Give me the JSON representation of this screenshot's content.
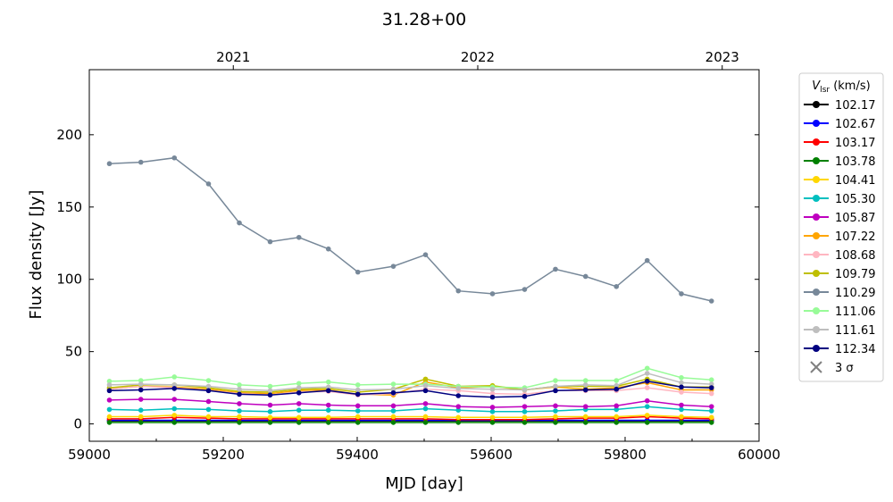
{
  "chart_data": {
    "type": "line",
    "title": "31.28+00",
    "xlabel": "MJD [day]",
    "ylabel": "Flux density [Jy]",
    "xlim": [
      59000,
      60000
    ],
    "ylim": [
      -12,
      245
    ],
    "xticks": [
      "59000",
      "59200",
      "59400",
      "59600",
      "59800",
      "60000"
    ],
    "yticks": [
      "0",
      "50",
      "100",
      "150",
      "200"
    ],
    "top_axis": {
      "ticks": [
        {
          "label": "2021",
          "mjd": 59215
        },
        {
          "label": "2022",
          "mjd": 59580
        },
        {
          "label": "2023",
          "mjd": 59945
        }
      ]
    },
    "legend": {
      "title": "V",
      "title_sub": "lsr",
      "title_unit": " (km/s)",
      "placement": "outside-right",
      "sigma_label": "3 σ"
    },
    "x": [
      59030,
      59077,
      59127,
      59178,
      59224,
      59270,
      59313,
      59357,
      59401,
      59454,
      59502,
      59551,
      59602,
      59650,
      59696,
      59741,
      59787,
      59833,
      59884,
      59929
    ],
    "series": [
      {
        "name": "102.17",
        "color": "#000000",
        "values": [
          2,
          2,
          2,
          2,
          2,
          2,
          2,
          2,
          2,
          2,
          2,
          2,
          2,
          2,
          2,
          2,
          2,
          2,
          2,
          2
        ]
      },
      {
        "name": "102.67",
        "color": "#0000ff",
        "values": [
          2.5,
          2.5,
          2.5,
          2.5,
          2.5,
          2.5,
          2.5,
          2.5,
          2.5,
          2.5,
          2.5,
          2.5,
          2.5,
          2.5,
          2.5,
          2.5,
          2.5,
          2.5,
          2.5,
          2.5
        ]
      },
      {
        "name": "103.17",
        "color": "#ff0000",
        "values": [
          3.5,
          3.5,
          4.5,
          4,
          3.5,
          3.5,
          3.5,
          3.5,
          3.5,
          3.5,
          3.5,
          3,
          3,
          3,
          3.5,
          4,
          4,
          5,
          4,
          3.5
        ]
      },
      {
        "name": "103.78",
        "color": "#008000",
        "values": [
          1,
          1,
          1,
          1,
          1,
          1,
          1,
          1,
          1,
          1,
          1,
          1,
          1,
          1,
          1,
          1,
          1,
          1,
          1,
          1
        ]
      },
      {
        "name": "104.41",
        "color": "#ffd700",
        "values": [
          5,
          5,
          6,
          5,
          5,
          4.5,
          4.5,
          4.5,
          5,
          5,
          5,
          4.5,
          4.5,
          4.5,
          5,
          5,
          5,
          6,
          5,
          4.5
        ]
      },
      {
        "name": "105.30",
        "color": "#00bfbf",
        "values": [
          10,
          9.5,
          10.5,
          10,
          9,
          8.5,
          9.5,
          9.5,
          9,
          9,
          10.5,
          9.5,
          8.5,
          8.5,
          9,
          10,
          10,
          12,
          10,
          9
        ]
      },
      {
        "name": "105.87",
        "color": "#bf00bf",
        "values": [
          16.5,
          17,
          17,
          15.5,
          14,
          13,
          14,
          13,
          12.5,
          12.5,
          14,
          12,
          11.5,
          12,
          12.5,
          12,
          12.5,
          16,
          13,
          12
        ]
      },
      {
        "name": "107.22",
        "color": "#ffa500",
        "values": [
          24,
          26,
          25.5,
          24,
          21.5,
          21,
          23,
          23.5,
          20.5,
          20,
          29,
          25,
          26,
          23.5,
          25.5,
          24,
          25,
          28.5,
          23.5,
          23.5
        ]
      },
      {
        "name": "108.68",
        "color": "#ffb6c1",
        "values": [
          24,
          26,
          25,
          23,
          21,
          20,
          22,
          22.5,
          20,
          21,
          24,
          23,
          21,
          20.5,
          23,
          23,
          23,
          25,
          22,
          21
        ]
      },
      {
        "name": "109.79",
        "color": "#bfbf00",
        "values": [
          25,
          27,
          27,
          25,
          22.5,
          22,
          24,
          24.5,
          22,
          24,
          31,
          26,
          26.5,
          23.5,
          26,
          26,
          26,
          31,
          25.5,
          25.5
        ]
      },
      {
        "name": "110.29",
        "color": "#778899",
        "values": [
          180,
          181,
          184,
          166,
          139,
          126,
          129,
          121,
          105,
          109,
          117,
          92,
          90,
          93,
          107,
          102,
          95,
          113,
          90,
          85
        ]
      },
      {
        "name": "111.06",
        "color": "#98fb98",
        "values": [
          29.5,
          30,
          32.5,
          30,
          27,
          26,
          28,
          29,
          27,
          27.5,
          27.5,
          26,
          25.5,
          25,
          30,
          30,
          30,
          38.5,
          32,
          30.5
        ]
      },
      {
        "name": "111.61",
        "color": "#bebebe",
        "values": [
          27,
          27.5,
          27,
          26,
          24,
          23,
          25,
          25.5,
          23.5,
          24,
          26.5,
          24.5,
          24,
          23.5,
          26,
          27,
          26.5,
          35,
          28.5,
          27.5
        ]
      },
      {
        "name": "112.34",
        "color": "#000080",
        "values": [
          23,
          23.5,
          24.5,
          23,
          20.5,
          20,
          21.5,
          23,
          20.5,
          21.5,
          23,
          19.5,
          18.5,
          19,
          23,
          23.5,
          24,
          29.5,
          25.5,
          25
        ]
      }
    ]
  }
}
